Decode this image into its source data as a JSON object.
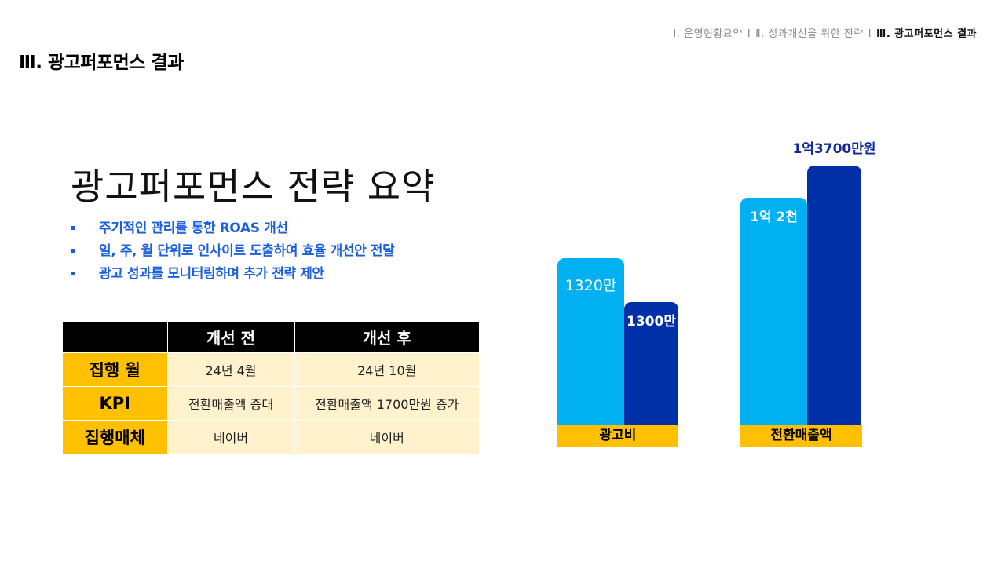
{
  "breadcrumb": {
    "item1": "Ⅰ. 운영현황요약",
    "sep1": "Ⅰ",
    "item2": "Ⅱ. 성과개선을 위한 전략",
    "sep2": "Ⅰ",
    "item3": "Ⅲ. 광고퍼포먼스 결과"
  },
  "section_title": "Ⅲ. 광고퍼포먼스 결과",
  "main_title": "광고퍼포먼스 전략 요약",
  "bullets": [
    "주기적인 관리를 통한 ROAS 개선",
    "일, 주, 월 단위로 인사이트 도출하여 효율 개선안 전달",
    "광고 성과를 모니터링하며 추가 전략 제안"
  ],
  "table": {
    "headers": [
      "",
      "개선 전",
      "개선 후"
    ],
    "rows": [
      [
        "집행 월",
        "24년 4월",
        "24년 10월"
      ],
      [
        "KPI",
        "전환매출액 증대",
        "전환매출액 1700만원 증가"
      ],
      [
        "집행매체",
        "네이버",
        "네이버"
      ]
    ]
  },
  "colors": {
    "light_bar": "#00b0f0",
    "dark_bar": "#002fa7",
    "category_band": "#ffc000",
    "bullet_text": "#1a5fe0"
  },
  "chart_data": {
    "type": "bar",
    "categories": [
      "광고비",
      "전환매출액"
    ],
    "series": [
      {
        "values": [
          1320,
          12000
        ]
      },
      {
        "values": [
          1300,
          13700
        ]
      }
    ],
    "data_labels": [
      [
        "1320만",
        "1억 2천"
      ],
      [
        "1300만",
        "1억3700만원"
      ]
    ],
    "title": "",
    "xlabel": "",
    "ylabel": ""
  }
}
